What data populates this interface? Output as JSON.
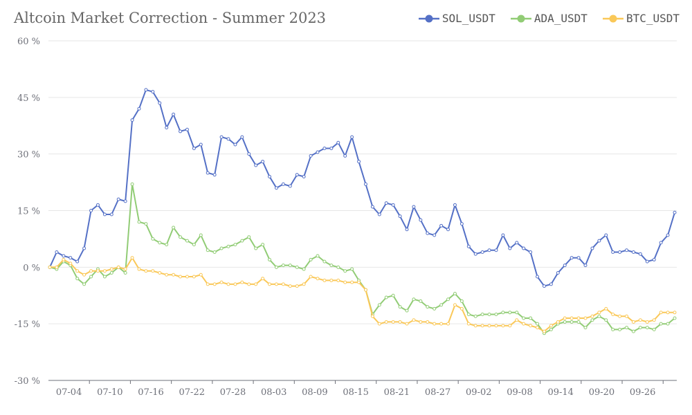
{
  "chart_data": {
    "type": "line",
    "title": "Altcoin Market Correction - Summer 2023",
    "xlabel": "",
    "ylabel": "",
    "ylim": [
      -30,
      60
    ],
    "yticks": [
      -30,
      -15,
      0,
      15,
      30,
      45,
      60
    ],
    "ytick_labels": [
      "-30 %",
      "-15 %",
      "0 %",
      "15 %",
      "30 %",
      "45 %",
      "60 %"
    ],
    "x_start": "07-01",
    "x_end": "10-01",
    "xtick_labels": [
      "07-04",
      "07-10",
      "07-16",
      "07-22",
      "07-28",
      "08-03",
      "08-09",
      "08-15",
      "08-21",
      "08-27",
      "09-02",
      "09-08",
      "09-14",
      "09-20",
      "09-26"
    ],
    "grid": true,
    "legend_position": "top-right",
    "series": [
      {
        "name": "SOL_USDT",
        "color": "#5470c6",
        "values": [
          0,
          4,
          3,
          2.5,
          1.5,
          5,
          15,
          16.5,
          14,
          14,
          18,
          17.5,
          39,
          42,
          47,
          46.5,
          43.5,
          37,
          40.5,
          36,
          36.5,
          31.5,
          32.5,
          25,
          24.5,
          34.5,
          34,
          32.5,
          34.5,
          30,
          27,
          28,
          24,
          21,
          22,
          21.5,
          24.5,
          24,
          29.5,
          30.5,
          31.5,
          31.5,
          33,
          29.5,
          34.5,
          28,
          22,
          16,
          14,
          17,
          16.5,
          13.5,
          10,
          16,
          12.5,
          9,
          8.5,
          11,
          10,
          16.5,
          11.5,
          5.5,
          3.5,
          4,
          4.5,
          4.5,
          8.5,
          5,
          6.5,
          5,
          4,
          -2.5,
          -5,
          -4.5,
          -1.5,
          0.5,
          2.5,
          2.5,
          0.5,
          5,
          7,
          8.5,
          4,
          4,
          4.5,
          4,
          3.5,
          1.5,
          2,
          6.5,
          8.5,
          14.5
        ]
      },
      {
        "name": "ADA_USDT",
        "color": "#91cc75",
        "values": [
          0,
          -0.5,
          1.5,
          0.5,
          -3,
          -4.5,
          -2.5,
          -0.5,
          -2.5,
          -1.5,
          0,
          -1.5,
          22,
          12,
          11.5,
          7.5,
          6.5,
          6,
          10.5,
          8,
          7,
          6,
          8.5,
          4.5,
          4,
          5,
          5.5,
          6,
          7,
          8,
          5,
          6,
          2,
          0,
          0.5,
          0.5,
          0,
          -0.5,
          2,
          3,
          1.5,
          0.5,
          0,
          -1,
          -0.5,
          -3.5,
          -6,
          -12.5,
          -10,
          -8,
          -7.5,
          -10.5,
          -11.5,
          -8.5,
          -9,
          -10.5,
          -11,
          -10,
          -8.5,
          -7,
          -9,
          -12.5,
          -13,
          -12.5,
          -12.5,
          -12.5,
          -12,
          -12,
          -12,
          -13.5,
          -13.5,
          -15,
          -17.5,
          -16.5,
          -15,
          -14.5,
          -14.5,
          -14.5,
          -16,
          -14,
          -13,
          -14,
          -16.5,
          -16.5,
          -16,
          -17,
          -16,
          -16,
          -16.5,
          -15,
          -15,
          -13.5
        ]
      },
      {
        "name": "BTC_USDT",
        "color": "#fac858",
        "values": [
          0,
          0,
          2,
          1,
          -1,
          -2,
          -1,
          -1,
          -1,
          -0.5,
          0,
          -0.5,
          2.5,
          -0.5,
          -1,
          -1,
          -1.5,
          -2,
          -2,
          -2.5,
          -2.5,
          -2.5,
          -2,
          -4.5,
          -4.5,
          -4,
          -4.5,
          -4.5,
          -4,
          -4.5,
          -4.5,
          -3,
          -4.5,
          -4.5,
          -4.5,
          -5,
          -5,
          -4.5,
          -2.5,
          -3,
          -3.5,
          -3.5,
          -3.5,
          -4,
          -4,
          -4,
          -6,
          -13,
          -15,
          -14.5,
          -14.5,
          -14.5,
          -15,
          -14,
          -14.5,
          -14.5,
          -15,
          -15,
          -15,
          -10,
          -11,
          -15,
          -15.5,
          -15.5,
          -15.5,
          -15.5,
          -15.5,
          -15.5,
          -14,
          -15,
          -15.5,
          -16,
          -17,
          -15.5,
          -14.5,
          -13.5,
          -13.5,
          -13.5,
          -13.5,
          -13,
          -12,
          -11,
          -12.5,
          -13,
          -13,
          -14.5,
          -14,
          -14.5,
          -14,
          -12,
          -12,
          -12
        ]
      }
    ]
  }
}
